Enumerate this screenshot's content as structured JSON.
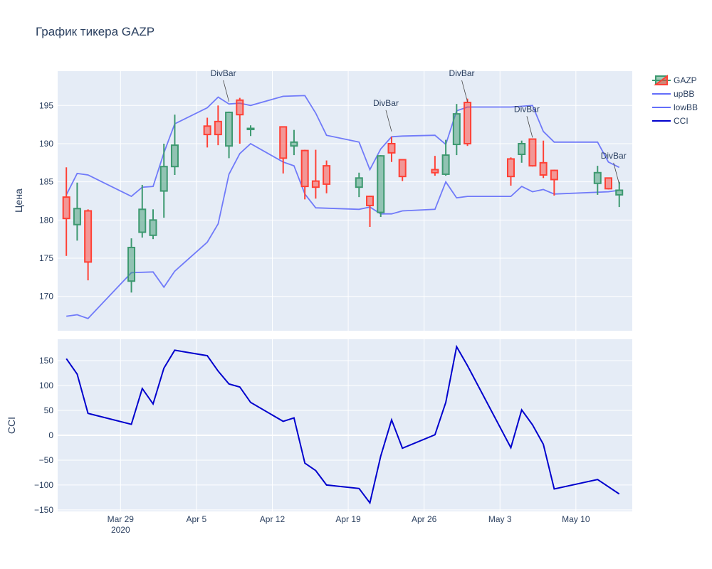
{
  "chart_data": {
    "type": "candlestick",
    "title": "График тикера GAZP",
    "ylabel_price": "Цена",
    "ylabel_cci": "CCI",
    "price_ylim": [
      165.5,
      199.5
    ],
    "cci_ylim": [
      -153,
      193
    ],
    "price_yticks": [
      170,
      175,
      180,
      185,
      190,
      195
    ],
    "cci_yticks": [
      -150,
      -100,
      -50,
      0,
      50,
      100,
      150
    ],
    "xticks": [
      {
        "day": 6,
        "label": "Mar 29",
        "sublabel": "2020"
      },
      {
        "day": 13,
        "label": "Apr 5",
        "sublabel": ""
      },
      {
        "day": 20,
        "label": "Apr 12",
        "sublabel": ""
      },
      {
        "day": 27,
        "label": "Apr 19",
        "sublabel": ""
      },
      {
        "day": 34,
        "label": "Apr 26",
        "sublabel": ""
      },
      {
        "day": 41,
        "label": "May 3",
        "sublabel": ""
      },
      {
        "day": 48,
        "label": "May 10",
        "sublabel": ""
      }
    ],
    "grid": true,
    "legend_position": "top-right",
    "colors": {
      "increasing": "#3D9970",
      "decreasing": "#FF4136",
      "bands": "#636efa",
      "cci": "#0000cd",
      "plot_bg": "#E5ECF6",
      "text": "#2a3f5f"
    },
    "legend": [
      "GAZP",
      "upBB",
      "lowBB",
      "CCI"
    ],
    "candles": [
      {
        "date": "2020-03-24",
        "day": 1,
        "open": 183.0,
        "high": 186.9,
        "low": 175.3,
        "close": 180.2
      },
      {
        "date": "2020-03-25",
        "day": 2,
        "open": 179.4,
        "high": 184.9,
        "low": 177.3,
        "close": 181.5
      },
      {
        "date": "2020-03-26",
        "day": 3,
        "open": 181.2,
        "high": 181.4,
        "low": 172.1,
        "close": 174.5
      },
      {
        "date": "2020-03-30",
        "day": 7,
        "open": 172.0,
        "high": 177.6,
        "low": 170.5,
        "close": 176.4
      },
      {
        "date": "2020-03-31",
        "day": 8,
        "open": 178.4,
        "high": 184.6,
        "low": 177.7,
        "close": 181.4
      },
      {
        "date": "2020-04-01",
        "day": 9,
        "open": 178.0,
        "high": 181.4,
        "low": 177.5,
        "close": 180.0
      },
      {
        "date": "2020-04-02",
        "day": 10,
        "open": 183.8,
        "high": 190.0,
        "low": 180.3,
        "close": 187.0
      },
      {
        "date": "2020-04-03",
        "day": 11,
        "open": 187.0,
        "high": 193.8,
        "low": 185.9,
        "close": 189.8
      },
      {
        "date": "2020-04-06",
        "day": 14,
        "open": 192.3,
        "high": 193.4,
        "low": 189.5,
        "close": 191.2
      },
      {
        "date": "2020-04-07",
        "day": 15,
        "open": 192.9,
        "high": 195.0,
        "low": 189.8,
        "close": 191.2
      },
      {
        "date": "2020-04-08",
        "day": 16,
        "open": 189.7,
        "high": 194.2,
        "low": 188.1,
        "close": 194.1
      },
      {
        "date": "2020-04-09",
        "day": 17,
        "open": 195.7,
        "high": 196.0,
        "low": 190.0,
        "close": 193.8
      },
      {
        "date": "2020-04-10",
        "day": 18,
        "open": 191.9,
        "high": 192.4,
        "low": 191.0,
        "close": 192.0
      },
      {
        "date": "2020-04-13",
        "day": 21,
        "open": 192.2,
        "high": 192.2,
        "low": 186.1,
        "close": 188.1
      },
      {
        "date": "2020-04-14",
        "day": 22,
        "open": 189.7,
        "high": 191.8,
        "low": 188.5,
        "close": 190.2
      },
      {
        "date": "2020-04-15",
        "day": 23,
        "open": 189.1,
        "high": 189.2,
        "low": 182.7,
        "close": 184.4
      },
      {
        "date": "2020-04-16",
        "day": 24,
        "open": 185.1,
        "high": 189.2,
        "low": 182.8,
        "close": 184.3
      },
      {
        "date": "2020-04-17",
        "day": 25,
        "open": 187.1,
        "high": 187.8,
        "low": 183.5,
        "close": 184.7
      },
      {
        "date": "2020-04-20",
        "day": 28,
        "open": 184.3,
        "high": 186.2,
        "low": 183.0,
        "close": 185.5
      },
      {
        "date": "2020-04-21",
        "day": 29,
        "open": 183.1,
        "high": 183.2,
        "low": 179.1,
        "close": 181.9
      },
      {
        "date": "2020-04-22",
        "day": 30,
        "open": 181.0,
        "high": 188.5,
        "low": 180.4,
        "close": 188.4
      },
      {
        "date": "2020-04-23",
        "day": 31,
        "open": 190.0,
        "high": 190.9,
        "low": 187.6,
        "close": 188.8
      },
      {
        "date": "2020-04-24",
        "day": 32,
        "open": 187.9,
        "high": 187.9,
        "low": 185.1,
        "close": 185.7
      },
      {
        "date": "2020-04-27",
        "day": 35,
        "open": 186.6,
        "high": 188.4,
        "low": 185.8,
        "close": 186.2
      },
      {
        "date": "2020-04-28",
        "day": 36,
        "open": 186.0,
        "high": 190.5,
        "low": 185.8,
        "close": 188.5
      },
      {
        "date": "2020-04-29",
        "day": 37,
        "open": 189.9,
        "high": 195.2,
        "low": 188.5,
        "close": 193.9
      },
      {
        "date": "2020-04-30",
        "day": 38,
        "open": 195.4,
        "high": 195.9,
        "low": 189.7,
        "close": 190.0
      },
      {
        "date": "2020-05-04",
        "day": 42,
        "open": 188.0,
        "high": 188.2,
        "low": 184.5,
        "close": 185.7
      },
      {
        "date": "2020-05-05",
        "day": 43,
        "open": 188.6,
        "high": 190.4,
        "low": 187.5,
        "close": 190.0
      },
      {
        "date": "2020-05-06",
        "day": 44,
        "open": 190.6,
        "high": 190.6,
        "low": 187.0,
        "close": 187.1
      },
      {
        "date": "2020-05-07",
        "day": 45,
        "open": 187.5,
        "high": 190.4,
        "low": 185.5,
        "close": 185.9
      },
      {
        "date": "2020-05-08",
        "day": 46,
        "open": 186.5,
        "high": 186.6,
        "low": 183.2,
        "close": 185.3
      },
      {
        "date": "2020-05-12",
        "day": 50,
        "open": 184.8,
        "high": 187.1,
        "low": 183.3,
        "close": 186.2
      },
      {
        "date": "2020-05-13",
        "day": 51,
        "open": 185.5,
        "high": 185.5,
        "low": 184.0,
        "close": 184.1
      },
      {
        "date": "2020-05-14",
        "day": 52,
        "open": 183.3,
        "high": 185.0,
        "low": 181.7,
        "close": 183.9
      }
    ],
    "upBB": [
      {
        "day": 1,
        "value": 183.3
      },
      {
        "day": 2,
        "value": 186.1
      },
      {
        "day": 3,
        "value": 185.9
      },
      {
        "day": 7,
        "value": 183.1
      },
      {
        "day": 8,
        "value": 184.3
      },
      {
        "day": 9,
        "value": 184.4
      },
      {
        "day": 10,
        "value": 188.8
      },
      {
        "day": 11,
        "value": 192.6
      },
      {
        "day": 14,
        "value": 194.7
      },
      {
        "day": 15,
        "value": 196.1
      },
      {
        "day": 16,
        "value": 195.2
      },
      {
        "day": 17,
        "value": 195.3
      },
      {
        "day": 18,
        "value": 195.0
      },
      {
        "day": 21,
        "value": 196.2
      },
      {
        "day": 23,
        "value": 196.3
      },
      {
        "day": 24,
        "value": 194.0
      },
      {
        "day": 25,
        "value": 191.1
      },
      {
        "day": 28,
        "value": 190.2
      },
      {
        "day": 29,
        "value": 186.6
      },
      {
        "day": 30,
        "value": 189.3
      },
      {
        "day": 31,
        "value": 190.9
      },
      {
        "day": 32,
        "value": 191.0
      },
      {
        "day": 35,
        "value": 191.1
      },
      {
        "day": 36,
        "value": 189.9
      },
      {
        "day": 37,
        "value": 194.3
      },
      {
        "day": 38,
        "value": 194.8
      },
      {
        "day": 42,
        "value": 194.8
      },
      {
        "day": 44,
        "value": 195.0
      },
      {
        "day": 45,
        "value": 191.6
      },
      {
        "day": 46,
        "value": 190.2
      },
      {
        "day": 50,
        "value": 190.2
      },
      {
        "day": 51,
        "value": 187.6
      },
      {
        "day": 52,
        "value": 186.9
      }
    ],
    "lowBB": [
      {
        "day": 1,
        "value": 167.4
      },
      {
        "day": 2,
        "value": 167.6
      },
      {
        "day": 3,
        "value": 167.1
      },
      {
        "day": 7,
        "value": 173.1
      },
      {
        "day": 9,
        "value": 173.2
      },
      {
        "day": 10,
        "value": 171.2
      },
      {
        "day": 11,
        "value": 173.3
      },
      {
        "day": 14,
        "value": 177.1
      },
      {
        "day": 15,
        "value": 179.5
      },
      {
        "day": 16,
        "value": 186.0
      },
      {
        "day": 17,
        "value": 188.7
      },
      {
        "day": 18,
        "value": 190.0
      },
      {
        "day": 21,
        "value": 187.6
      },
      {
        "day": 22,
        "value": 187.1
      },
      {
        "day": 23,
        "value": 183.4
      },
      {
        "day": 24,
        "value": 181.6
      },
      {
        "day": 28,
        "value": 181.4
      },
      {
        "day": 29,
        "value": 181.7
      },
      {
        "day": 30,
        "value": 180.8
      },
      {
        "day": 31,
        "value": 180.8
      },
      {
        "day": 32,
        "value": 181.2
      },
      {
        "day": 35,
        "value": 181.4
      },
      {
        "day": 36,
        "value": 185.0
      },
      {
        "day": 37,
        "value": 182.9
      },
      {
        "day": 38,
        "value": 183.1
      },
      {
        "day": 42,
        "value": 183.1
      },
      {
        "day": 43,
        "value": 184.4
      },
      {
        "day": 44,
        "value": 183.7
      },
      {
        "day": 45,
        "value": 184.0
      },
      {
        "day": 46,
        "value": 183.4
      },
      {
        "day": 51,
        "value": 183.7
      },
      {
        "day": 52,
        "value": 183.9
      }
    ],
    "cci": [
      {
        "day": 1,
        "value": 154
      },
      {
        "day": 2,
        "value": 123
      },
      {
        "day": 3,
        "value": 44
      },
      {
        "day": 7,
        "value": 22
      },
      {
        "day": 8,
        "value": 94
      },
      {
        "day": 9,
        "value": 63
      },
      {
        "day": 10,
        "value": 135
      },
      {
        "day": 11,
        "value": 171
      },
      {
        "day": 14,
        "value": 160
      },
      {
        "day": 15,
        "value": 129
      },
      {
        "day": 16,
        "value": 103
      },
      {
        "day": 17,
        "value": 97
      },
      {
        "day": 18,
        "value": 66
      },
      {
        "day": 21,
        "value": 28
      },
      {
        "day": 22,
        "value": 35
      },
      {
        "day": 23,
        "value": -56
      },
      {
        "day": 24,
        "value": -71
      },
      {
        "day": 25,
        "value": -100
      },
      {
        "day": 28,
        "value": -107
      },
      {
        "day": 29,
        "value": -136
      },
      {
        "day": 30,
        "value": -42
      },
      {
        "day": 31,
        "value": 31
      },
      {
        "day": 32,
        "value": -26
      },
      {
        "day": 35,
        "value": 1
      },
      {
        "day": 36,
        "value": 66
      },
      {
        "day": 37,
        "value": 178
      },
      {
        "day": 38,
        "value": 140
      },
      {
        "day": 42,
        "value": -25
      },
      {
        "day": 43,
        "value": 51
      },
      {
        "day": 44,
        "value": 21
      },
      {
        "day": 45,
        "value": -18
      },
      {
        "day": 46,
        "value": -108
      },
      {
        "day": 50,
        "value": -89
      },
      {
        "day": 52,
        "value": -118
      }
    ],
    "annotations": [
      {
        "day": 16,
        "price": 195.5,
        "text": "DivBar"
      },
      {
        "day": 31,
        "price": 191.6,
        "text": "DivBar"
      },
      {
        "day": 38,
        "price": 195.5,
        "text": "DivBar"
      },
      {
        "day": 44,
        "price": 190.8,
        "text": "DivBar"
      },
      {
        "day": 52,
        "price": 184.7,
        "text": "DivBar"
      }
    ]
  }
}
